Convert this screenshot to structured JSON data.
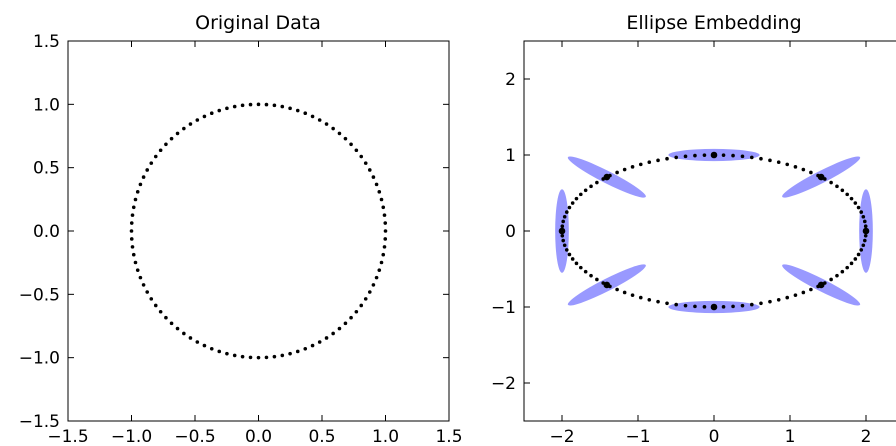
{
  "chart_data": [
    {
      "type": "scatter",
      "title": "Original Data",
      "xlim": [
        -1.5,
        1.5
      ],
      "ylim": [
        -1.5,
        1.5
      ],
      "xticks": [
        -1.5,
        -1.0,
        -0.5,
        0.0,
        0.5,
        1.0,
        1.5
      ],
      "yticks": [
        -1.5,
        -1.0,
        -0.5,
        0.0,
        0.5,
        1.0,
        1.5
      ],
      "xtick_labels": [
        "−1.5",
        "−1.0",
        "−0.5",
        "0.0",
        "0.5",
        "1.0",
        "1.5"
      ],
      "ytick_labels": [
        "−1.5",
        "−1.0",
        "−0.5",
        "0.0",
        "0.5",
        "1.0",
        "1.5"
      ],
      "grid": false,
      "series": [
        {
          "shape": "circle",
          "center": [
            0,
            0
          ],
          "radius": 1.0,
          "n_points": 100,
          "color": "#000000"
        }
      ]
    },
    {
      "type": "scatter",
      "title": "Ellipse Embedding",
      "xlim": [
        -2.5,
        2.5
      ],
      "ylim": [
        -2.5,
        2.5
      ],
      "xticks": [
        -2,
        -1,
        0,
        1,
        2
      ],
      "yticks": [
        -2,
        -1,
        0,
        1,
        2
      ],
      "xtick_labels": [
        "−2",
        "−1",
        "0",
        "1",
        "2"
      ],
      "ytick_labels": [
        "−2",
        "−1",
        "0",
        "1",
        "2"
      ],
      "grid": false,
      "series": [
        {
          "shape": "ellipse-curve",
          "center": [
            0,
            0
          ],
          "semi_axes": [
            2.0,
            1.0
          ],
          "n_points": 100,
          "color": "#000000"
        },
        {
          "shape": "ellipses",
          "color": "#0000ff",
          "opacity": 0.4,
          "items": [
            {
              "x": 2.0,
              "y": 0.0,
              "w": 0.18,
              "h": 1.1,
              "angle": 0
            },
            {
              "x": 1.41,
              "y": 0.71,
              "w": 1.15,
              "h": 0.16,
              "angle": -27
            },
            {
              "x": 0.0,
              "y": 1.0,
              "w": 1.2,
              "h": 0.16,
              "angle": 0
            },
            {
              "x": -1.41,
              "y": 0.71,
              "w": 1.15,
              "h": 0.16,
              "angle": 27
            },
            {
              "x": -2.0,
              "y": 0.0,
              "w": 0.18,
              "h": 1.1,
              "angle": 0
            },
            {
              "x": -1.41,
              "y": -0.71,
              "w": 1.15,
              "h": 0.16,
              "angle": -27
            },
            {
              "x": 0.0,
              "y": -1.0,
              "w": 1.2,
              "h": 0.16,
              "angle": 0
            },
            {
              "x": 1.41,
              "y": -0.71,
              "w": 1.15,
              "h": 0.16,
              "angle": 27
            }
          ]
        },
        {
          "shape": "points",
          "color": "#000000",
          "x": [
            2.0,
            1.41,
            0.0,
            -1.41,
            -2.0,
            -1.41,
            0.0,
            1.41
          ],
          "y": [
            0.0,
            0.71,
            1.0,
            0.71,
            0.0,
            -0.71,
            -1.0,
            -0.71
          ]
        }
      ]
    }
  ]
}
